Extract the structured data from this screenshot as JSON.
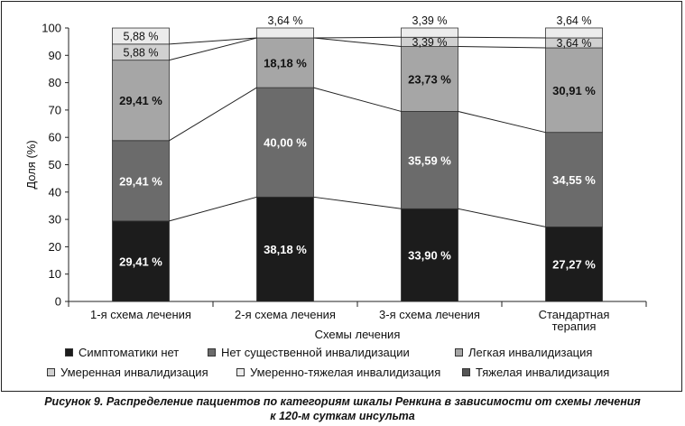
{
  "chart_data": {
    "type": "bar",
    "stacked": true,
    "categories": [
      "1-я схема лечения",
      "2-я схема лечения",
      "3-я схема лечения",
      "Стандартная терапия"
    ],
    "category_lines": [
      [
        "1-я схема лечения"
      ],
      [
        "2-я схема лечения"
      ],
      [
        "3-я схема лечения"
      ],
      [
        "Стандартная",
        "терапия"
      ]
    ],
    "xlabel": "Схемы лечения",
    "ylabel": "Доля (%)",
    "ylim": [
      0,
      100
    ],
    "yticks": [
      0,
      10,
      20,
      30,
      40,
      50,
      60,
      70,
      80,
      90,
      100
    ],
    "grid": false,
    "legend_position": "bottom",
    "series": [
      {
        "name": "Симптоматики нет",
        "color": "#1c1c1c",
        "label_color": "#ffffff",
        "values": [
          29.41,
          38.18,
          33.9,
          27.27
        ],
        "labels": [
          "29,41 %",
          "38,18 %",
          "33,90 %",
          "27,27 %"
        ]
      },
      {
        "name": "Нет существенной инвалидизации",
        "color": "#6b6b6b",
        "label_color": "#ffffff",
        "values": [
          29.41,
          40.0,
          35.59,
          34.55
        ],
        "labels": [
          "29,41 %",
          "40,00 %",
          "35,59 %",
          "34,55 %"
        ]
      },
      {
        "name": "Легкая инвалидизация",
        "color": "#a6a6a6",
        "label_color": "#111111",
        "values": [
          29.41,
          18.18,
          23.73,
          30.91
        ],
        "labels": [
          "29,41 %",
          "18,18 %",
          "23,73 %",
          "30,91 %"
        ]
      },
      {
        "name": "Умеренная инвалидизация",
        "color": "#d0d0d0",
        "label_color": "#111111",
        "values": [
          5.88,
          0,
          3.39,
          3.64
        ],
        "labels": [
          "5,88 %",
          "",
          "3,39 %",
          "3,64 %"
        ]
      },
      {
        "name": "Умеренно-тяжелая инвалидизация",
        "color": "#ececec",
        "label_color": "#111111",
        "values": [
          5.88,
          3.64,
          3.39,
          3.64
        ],
        "labels": [
          "5,88 %",
          "3,64 %",
          "3,39 %",
          "3,64 %"
        ]
      },
      {
        "name": "Тяжелая инвалидизация",
        "color": "#555555",
        "label_color": "#ffffff",
        "values": [
          0,
          0,
          0,
          0
        ],
        "labels": [
          "",
          "",
          "",
          ""
        ]
      }
    ]
  },
  "caption": {
    "line1": "Рисунок 9. Распределение пациентов по категориям шкалы Ренкина в зависимости от схемы лечения",
    "line2": "к 120-м суткам инсульта"
  }
}
